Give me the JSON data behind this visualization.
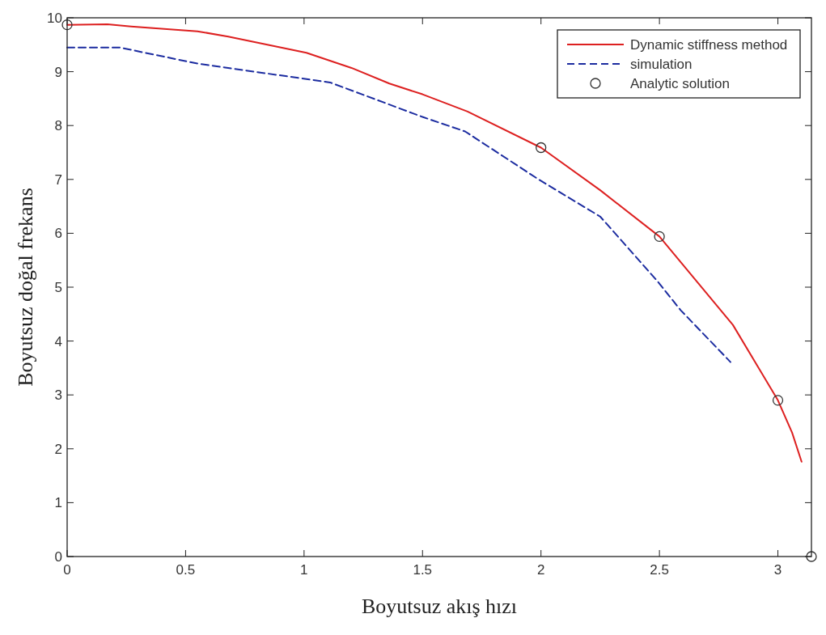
{
  "chart_data": {
    "type": "line",
    "xlabel": "Boyutsuz akış hızı",
    "ylabel": "Boyutsuz doğal frekans",
    "xlim": [
      0,
      3.1416
    ],
    "ylim": [
      0,
      10
    ],
    "xticks": [
      0,
      0.5,
      1,
      1.5,
      2,
      2.5,
      3
    ],
    "yticks": [
      0,
      1,
      2,
      3,
      4,
      5,
      6,
      7,
      8,
      9,
      10
    ],
    "grid": false,
    "legend": "top right",
    "series": [
      {
        "name": "Dynamic stiffness method",
        "color": "#dd2020",
        "line_style": "solid",
        "marker": "none",
        "x": [
          0,
          0.17,
          0.27,
          0.55,
          0.68,
          1.01,
          1.2,
          1.36,
          1.5,
          1.69,
          2.0,
          2.25,
          2.5,
          2.81,
          2.92,
          3.0,
          3.06,
          3.1
        ],
        "values": [
          9.87,
          9.88,
          9.84,
          9.75,
          9.65,
          9.35,
          9.07,
          8.78,
          8.58,
          8.26,
          7.59,
          6.8,
          5.94,
          4.3,
          3.49,
          2.9,
          2.3,
          1.76
        ]
      },
      {
        "name": "simulation",
        "color": "#1c2ca0",
        "line_style": "dashed",
        "marker": "none",
        "x": [
          0,
          0.22,
          0.55,
          1.11,
          1.5,
          1.68,
          1.99,
          2.25,
          2.49,
          2.59,
          2.8
        ],
        "values": [
          9.45,
          9.45,
          9.15,
          8.8,
          8.16,
          7.89,
          7.0,
          6.31,
          5.12,
          4.57,
          3.61
        ]
      },
      {
        "name": "Analytic solution",
        "type": "scatter",
        "color": "#333333",
        "marker": "circle",
        "x": [
          0,
          2,
          2.5,
          3,
          3.1416
        ],
        "values": [
          9.87,
          7.59,
          5.94,
          2.9,
          0
        ]
      }
    ]
  }
}
